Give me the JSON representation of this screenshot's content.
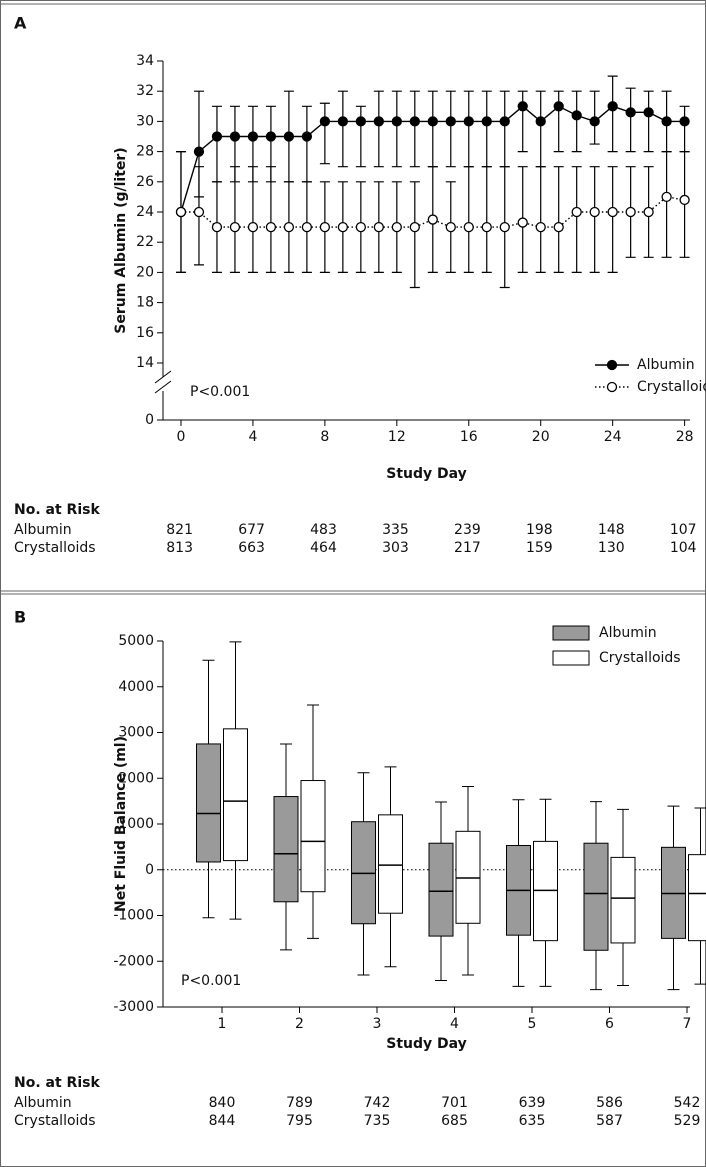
{
  "chart_data": [
    {
      "type": "line",
      "panel": "A",
      "y_label": "Serum Albumin (g/liter)",
      "x_label": "Study Day",
      "annotation": "P<0.001",
      "x": [
        0,
        1,
        2,
        3,
        4,
        5,
        6,
        7,
        8,
        9,
        10,
        11,
        12,
        13,
        14,
        15,
        16,
        17,
        18,
        19,
        20,
        21,
        22,
        23,
        24,
        25,
        26,
        27,
        28
      ],
      "xlim": [
        -1,
        28.3
      ],
      "xticks": [
        0,
        4,
        8,
        12,
        16,
        20,
        24,
        28
      ],
      "ylim": [
        0,
        34
      ],
      "yticks": [
        0,
        14,
        16,
        18,
        20,
        22,
        24,
        26,
        28,
        30,
        32,
        34
      ],
      "y_break": [
        0,
        14
      ],
      "legend": "lower right",
      "series": [
        {
          "name": "Albumin",
          "color": "#000000",
          "marker": "filled",
          "line_style": "solid",
          "values": [
            24,
            28,
            29,
            29,
            29,
            29,
            29,
            29,
            30,
            30,
            30,
            30,
            30,
            30,
            30,
            30,
            30,
            30,
            30,
            31,
            30,
            31,
            30.4,
            30,
            31,
            30.6,
            30.6,
            30,
            30
          ],
          "lower": [
            20,
            25,
            26,
            26,
            26,
            26,
            26,
            26,
            27.2,
            27,
            27,
            27,
            27,
            27,
            27,
            27,
            27,
            27,
            27,
            28,
            27,
            28,
            28,
            28.5,
            28,
            28,
            28,
            28,
            28
          ],
          "upper": [
            28,
            32,
            31,
            31,
            31,
            31,
            32,
            31,
            31.2,
            32,
            31,
            32,
            32,
            32,
            32,
            32,
            32,
            32,
            32,
            32,
            32,
            32,
            32,
            32,
            33,
            32.2,
            32,
            32,
            31
          ]
        },
        {
          "name": "Crystalloids",
          "color": "#000000",
          "marker": "open",
          "line_style": "dotted",
          "values": [
            24,
            24,
            23,
            23,
            23,
            23,
            23,
            23,
            23,
            23,
            23,
            23,
            23,
            23,
            23.5,
            23,
            23,
            23,
            23,
            23.3,
            23,
            23,
            24,
            24,
            24,
            24,
            24,
            25,
            24.8
          ],
          "lower": [
            20,
            20.5,
            20,
            20,
            20,
            20,
            20,
            20,
            20,
            20,
            20,
            20,
            20,
            19,
            20,
            20,
            20,
            20,
            19,
            20,
            20,
            20,
            20,
            20,
            20,
            21,
            21,
            21,
            21
          ],
          "upper": [
            28,
            27,
            26,
            27,
            27,
            27,
            26,
            26,
            26,
            26,
            26,
            26,
            26,
            26,
            27,
            26,
            27,
            27,
            27,
            27,
            27,
            27,
            27,
            27,
            27,
            27,
            27,
            28,
            28
          ]
        }
      ],
      "risk_table": {
        "title": "No. at Risk",
        "rows": [
          {
            "name": "Albumin",
            "values": [
              821,
              677,
              483,
              335,
              239,
              198,
              148,
              107
            ]
          },
          {
            "name": "Crystalloids",
            "values": [
              813,
              663,
              464,
              303,
              217,
              159,
              130,
              104
            ]
          }
        ]
      }
    },
    {
      "type": "box",
      "panel": "B",
      "y_label": "Net Fluid Balance (ml)",
      "x_label": "Study Day",
      "annotation": "P<0.001",
      "categories": [
        "1",
        "2",
        "3",
        "4",
        "5",
        "6",
        "7"
      ],
      "ylim": [
        -3000,
        5000
      ],
      "yticks": [
        -3000,
        -2000,
        -1000,
        0,
        1000,
        2000,
        3000,
        4000,
        5000
      ],
      "zero_line": "dotted",
      "legend": "upper right",
      "series": [
        {
          "name": "Albumin",
          "color": "#9a9a9a",
          "whisker_low": [
            -1050,
            -1750,
            -2300,
            -2420,
            -2550,
            -2620,
            -2620
          ],
          "q1": [
            170,
            -700,
            -1180,
            -1450,
            -1430,
            -1760,
            -1500
          ],
          "median": [
            1230,
            350,
            -80,
            -470,
            -450,
            -520,
            -520
          ],
          "q3": [
            2750,
            1600,
            1050,
            580,
            530,
            580,
            490
          ],
          "whisker_high": [
            4580,
            2750,
            2120,
            1480,
            1530,
            1490,
            1390
          ]
        },
        {
          "name": "Crystalloids",
          "color": "#ffffff",
          "whisker_low": [
            -1080,
            -1500,
            -2120,
            -2300,
            -2550,
            -2530,
            -2500
          ],
          "q1": [
            200,
            -480,
            -950,
            -1170,
            -1550,
            -1600,
            -1550
          ],
          "median": [
            1500,
            620,
            100,
            -180,
            -450,
            -620,
            -520
          ],
          "q3": [
            3080,
            1950,
            1200,
            840,
            620,
            270,
            330
          ],
          "whisker_high": [
            4980,
            3600,
            2250,
            1820,
            1540,
            1320,
            1350
          ]
        }
      ],
      "risk_table": {
        "title": "No. at Risk",
        "rows": [
          {
            "name": "Albumin",
            "values": [
              840,
              789,
              742,
              701,
              639,
              586,
              542
            ]
          },
          {
            "name": "Crystalloids",
            "values": [
              844,
              795,
              735,
              685,
              635,
              587,
              529
            ]
          }
        ]
      }
    }
  ]
}
